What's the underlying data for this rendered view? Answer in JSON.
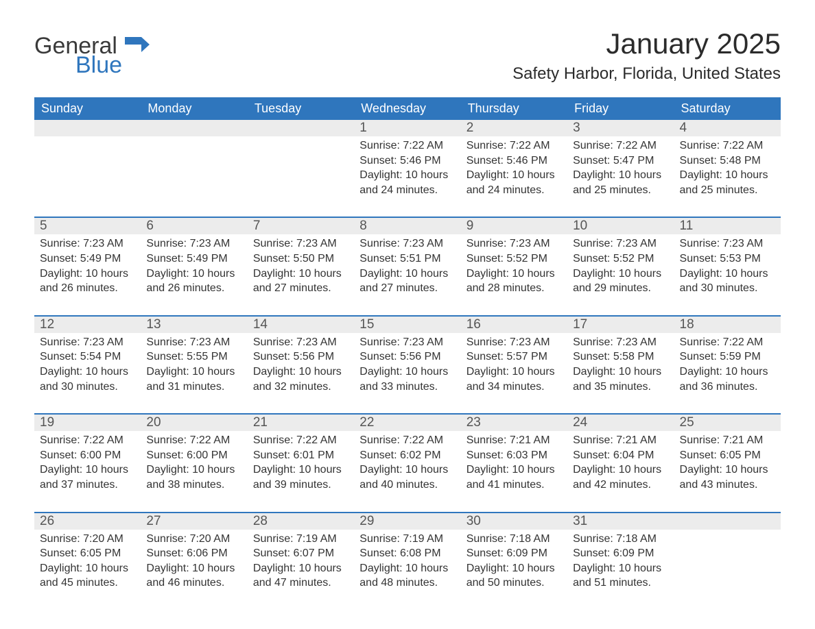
{
  "brand": {
    "word1": "General",
    "word2": "Blue",
    "flag_color": "#2f76bd"
  },
  "title": "January 2025",
  "subtitle": "Safety Harbor, Florida, United States",
  "colors": {
    "header_bg": "#2f76bd",
    "header_text": "#ffffff",
    "daynum_bg": "#ececec",
    "text": "#333333",
    "rule": "#2f76bd"
  },
  "day_headers": [
    "Sunday",
    "Monday",
    "Tuesday",
    "Wednesday",
    "Thursday",
    "Friday",
    "Saturday"
  ],
  "weeks": [
    [
      null,
      null,
      null,
      {
        "n": "1",
        "sunrise": "7:22 AM",
        "sunset": "5:46 PM",
        "daylight": "10 hours and 24 minutes."
      },
      {
        "n": "2",
        "sunrise": "7:22 AM",
        "sunset": "5:46 PM",
        "daylight": "10 hours and 24 minutes."
      },
      {
        "n": "3",
        "sunrise": "7:22 AM",
        "sunset": "5:47 PM",
        "daylight": "10 hours and 25 minutes."
      },
      {
        "n": "4",
        "sunrise": "7:22 AM",
        "sunset": "5:48 PM",
        "daylight": "10 hours and 25 minutes."
      }
    ],
    [
      {
        "n": "5",
        "sunrise": "7:23 AM",
        "sunset": "5:49 PM",
        "daylight": "10 hours and 26 minutes."
      },
      {
        "n": "6",
        "sunrise": "7:23 AM",
        "sunset": "5:49 PM",
        "daylight": "10 hours and 26 minutes."
      },
      {
        "n": "7",
        "sunrise": "7:23 AM",
        "sunset": "5:50 PM",
        "daylight": "10 hours and 27 minutes."
      },
      {
        "n": "8",
        "sunrise": "7:23 AM",
        "sunset": "5:51 PM",
        "daylight": "10 hours and 27 minutes."
      },
      {
        "n": "9",
        "sunrise": "7:23 AM",
        "sunset": "5:52 PM",
        "daylight": "10 hours and 28 minutes."
      },
      {
        "n": "10",
        "sunrise": "7:23 AM",
        "sunset": "5:52 PM",
        "daylight": "10 hours and 29 minutes."
      },
      {
        "n": "11",
        "sunrise": "7:23 AM",
        "sunset": "5:53 PM",
        "daylight": "10 hours and 30 minutes."
      }
    ],
    [
      {
        "n": "12",
        "sunrise": "7:23 AM",
        "sunset": "5:54 PM",
        "daylight": "10 hours and 30 minutes."
      },
      {
        "n": "13",
        "sunrise": "7:23 AM",
        "sunset": "5:55 PM",
        "daylight": "10 hours and 31 minutes."
      },
      {
        "n": "14",
        "sunrise": "7:23 AM",
        "sunset": "5:56 PM",
        "daylight": "10 hours and 32 minutes."
      },
      {
        "n": "15",
        "sunrise": "7:23 AM",
        "sunset": "5:56 PM",
        "daylight": "10 hours and 33 minutes."
      },
      {
        "n": "16",
        "sunrise": "7:23 AM",
        "sunset": "5:57 PM",
        "daylight": "10 hours and 34 minutes."
      },
      {
        "n": "17",
        "sunrise": "7:23 AM",
        "sunset": "5:58 PM",
        "daylight": "10 hours and 35 minutes."
      },
      {
        "n": "18",
        "sunrise": "7:22 AM",
        "sunset": "5:59 PM",
        "daylight": "10 hours and 36 minutes."
      }
    ],
    [
      {
        "n": "19",
        "sunrise": "7:22 AM",
        "sunset": "6:00 PM",
        "daylight": "10 hours and 37 minutes."
      },
      {
        "n": "20",
        "sunrise": "7:22 AM",
        "sunset": "6:00 PM",
        "daylight": "10 hours and 38 minutes."
      },
      {
        "n": "21",
        "sunrise": "7:22 AM",
        "sunset": "6:01 PM",
        "daylight": "10 hours and 39 minutes."
      },
      {
        "n": "22",
        "sunrise": "7:22 AM",
        "sunset": "6:02 PM",
        "daylight": "10 hours and 40 minutes."
      },
      {
        "n": "23",
        "sunrise": "7:21 AM",
        "sunset": "6:03 PM",
        "daylight": "10 hours and 41 minutes."
      },
      {
        "n": "24",
        "sunrise": "7:21 AM",
        "sunset": "6:04 PM",
        "daylight": "10 hours and 42 minutes."
      },
      {
        "n": "25",
        "sunrise": "7:21 AM",
        "sunset": "6:05 PM",
        "daylight": "10 hours and 43 minutes."
      }
    ],
    [
      {
        "n": "26",
        "sunrise": "7:20 AM",
        "sunset": "6:05 PM",
        "daylight": "10 hours and 45 minutes."
      },
      {
        "n": "27",
        "sunrise": "7:20 AM",
        "sunset": "6:06 PM",
        "daylight": "10 hours and 46 minutes."
      },
      {
        "n": "28",
        "sunrise": "7:19 AM",
        "sunset": "6:07 PM",
        "daylight": "10 hours and 47 minutes."
      },
      {
        "n": "29",
        "sunrise": "7:19 AM",
        "sunset": "6:08 PM",
        "daylight": "10 hours and 48 minutes."
      },
      {
        "n": "30",
        "sunrise": "7:18 AM",
        "sunset": "6:09 PM",
        "daylight": "10 hours and 50 minutes."
      },
      {
        "n": "31",
        "sunrise": "7:18 AM",
        "sunset": "6:09 PM",
        "daylight": "10 hours and 51 minutes."
      },
      null
    ]
  ],
  "labels": {
    "sunrise": "Sunrise: ",
    "sunset": "Sunset: ",
    "daylight": "Daylight: "
  }
}
